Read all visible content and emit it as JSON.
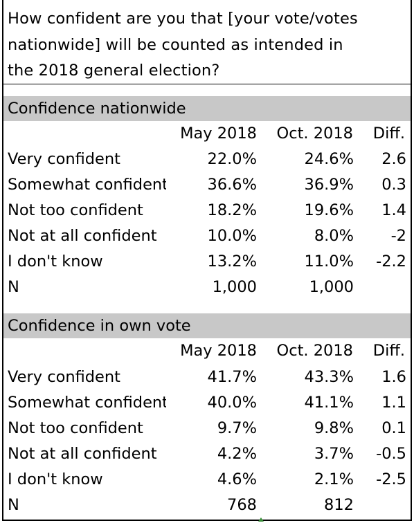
{
  "question": {
    "lines": [
      "How confident are you that [your vote/votes",
      "nationwide] will be counted as intended in",
      "the 2018 general election?"
    ]
  },
  "columns": {
    "may": "May 2018",
    "oct": "Oct. 2018",
    "diff": "Diff."
  },
  "sections": [
    {
      "title": "Confidence nationwide",
      "rows": [
        {
          "label": "Very confident",
          "may": "22.0%",
          "oct": "24.6%",
          "diff": "2.6"
        },
        {
          "label": "Somewhat confident",
          "may": "36.6%",
          "oct": "36.9%",
          "diff": "0.3"
        },
        {
          "label": "Not too confident",
          "may": "18.2%",
          "oct": "19.6%",
          "diff": "1.4"
        },
        {
          "label": "Not at all confident",
          "may": "10.0%",
          "oct": "8.0%",
          "diff": "-2"
        },
        {
          "label": "I don't know",
          "may": "13.2%",
          "oct": "11.0%",
          "diff": "-2.2"
        },
        {
          "label": "N",
          "may": "1,000",
          "oct": "1,000",
          "diff": ""
        }
      ]
    },
    {
      "title": "Confidence in own vote",
      "rows": [
        {
          "label": "Very confident",
          "may": "41.7%",
          "oct": "43.3%",
          "diff": "1.6"
        },
        {
          "label": "Somewhat confident",
          "may": "40.0%",
          "oct": "41.1%",
          "diff": "1.1"
        },
        {
          "label": "Not too confident",
          "may": "9.7%",
          "oct": "9.8%",
          "diff": "0.1"
        },
        {
          "label": "Not at all confident",
          "may": "4.2%",
          "oct": "3.7%",
          "diff": "-0.5"
        },
        {
          "label": "I don't know",
          "may": "4.6%",
          "oct": "2.1%",
          "diff": "-2.5"
        },
        {
          "label": "N",
          "may": "768",
          "oct": "812",
          "diff": ""
        }
      ]
    }
  ],
  "chart_data": [
    {
      "type": "table",
      "title": "Confidence nationwide",
      "categories": [
        "Very confident",
        "Somewhat confident",
        "Not too confident",
        "Not at all confident",
        "I don't know"
      ],
      "series": [
        {
          "name": "May 2018",
          "values": [
            22.0,
            36.6,
            18.2,
            10.0,
            13.2
          ]
        },
        {
          "name": "Oct. 2018",
          "values": [
            24.6,
            36.9,
            19.6,
            8.0,
            11.0
          ]
        },
        {
          "name": "Diff.",
          "values": [
            2.6,
            0.3,
            1.4,
            -2,
            -2.2
          ]
        }
      ],
      "N": {
        "May 2018": 1000,
        "Oct. 2018": 1000
      }
    },
    {
      "type": "table",
      "title": "Confidence in own vote",
      "categories": [
        "Very confident",
        "Somewhat confident",
        "Not too confident",
        "Not at all confident",
        "I don't know"
      ],
      "series": [
        {
          "name": "May 2018",
          "values": [
            41.7,
            40.0,
            9.7,
            4.2,
            4.6
          ]
        },
        {
          "name": "Oct. 2018",
          "values": [
            43.3,
            41.1,
            9.8,
            3.7,
            2.1
          ]
        },
        {
          "name": "Diff.",
          "values": [
            1.6,
            1.1,
            0.1,
            -0.5,
            -2.5
          ]
        }
      ],
      "N": {
        "May 2018": 768,
        "Oct. 2018": 812
      }
    }
  ]
}
